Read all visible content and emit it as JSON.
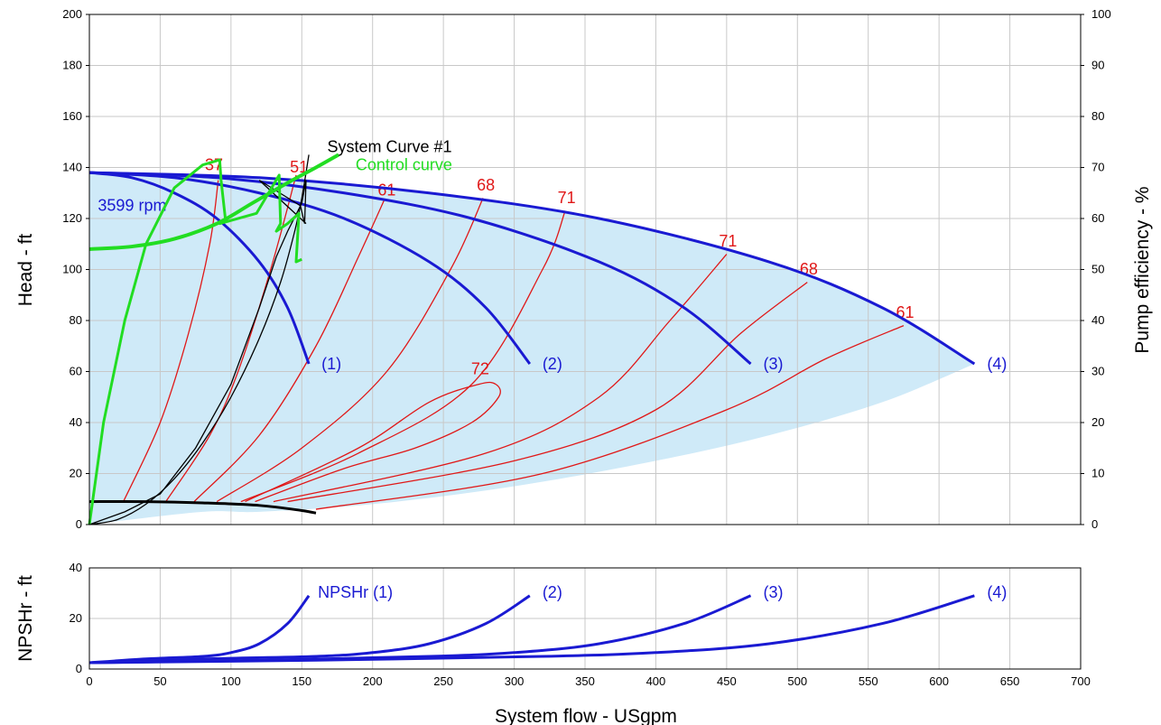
{
  "chart_data": [
    {
      "type": "line",
      "xlabel": "System flow - USgpm",
      "ylabel": "Head - ft",
      "y2label": "Pump efficiency - %",
      "xlim": [
        0,
        700
      ],
      "ylim": [
        0,
        200
      ],
      "y2lim": [
        0,
        100
      ],
      "x_ticks": [
        "0",
        "50",
        "100",
        "150",
        "200",
        "250",
        "300",
        "350",
        "400",
        "450",
        "500",
        "550",
        "600",
        "650",
        "700"
      ],
      "y_ticks": [
        "0",
        "20",
        "40",
        "60",
        "80",
        "100",
        "120",
        "140",
        "160",
        "180",
        "200"
      ],
      "y2_ticks": [
        "0",
        "10",
        "20",
        "30",
        "40",
        "50",
        "60",
        "70",
        "80",
        "90",
        "100"
      ],
      "grid": true,
      "colors": {
        "pump": "#1a1ad2",
        "efficiency": "#e01818",
        "control": "#22dd22",
        "system": "#000000",
        "fill": "#cfeaf8"
      },
      "pump_curves": [
        {
          "label": "(1)",
          "points": [
            [
              0,
              138
            ],
            [
              30,
              136
            ],
            [
              60,
              130
            ],
            [
              90,
              120
            ],
            [
              120,
              103
            ],
            [
              140,
              85
            ],
            [
              155,
              63
            ]
          ]
        },
        {
          "label": "(2)",
          "points": [
            [
              0,
              138
            ],
            [
              60,
              136
            ],
            [
              120,
              130
            ],
            [
              180,
              120
            ],
            [
              240,
              103
            ],
            [
              280,
              85
            ],
            [
              311,
              63
            ]
          ]
        },
        {
          "label": "(3)",
          "points": [
            [
              0,
              138
            ],
            [
              90,
              136
            ],
            [
              180,
              130
            ],
            [
              270,
              120
            ],
            [
              360,
              103
            ],
            [
              420,
              85
            ],
            [
              467,
              63
            ]
          ]
        },
        {
          "label": "(4)",
          "points": [
            [
              0,
              138
            ],
            [
              120,
              136
            ],
            [
              240,
              130
            ],
            [
              360,
              120
            ],
            [
              480,
              103
            ],
            [
              560,
              85
            ],
            [
              625,
              63
            ]
          ]
        }
      ],
      "speed_label": "3599 rpm",
      "efficiency_curves": [
        {
          "label": "37",
          "points": [
            [
              24,
              9
            ],
            [
              50,
              40
            ],
            [
              70,
              75
            ],
            [
              85,
              110
            ],
            [
              91,
              135
            ]
          ]
        },
        {
          "label": "51",
          "points": [
            [
              54,
              9
            ],
            [
              85,
              35
            ],
            [
              105,
              60
            ],
            [
              128,
              100
            ],
            [
              146,
              137
            ]
          ]
        },
        {
          "label": "61",
          "points": [
            [
              74,
              9
            ],
            [
              120,
              35
            ],
            [
              160,
              70
            ],
            [
              190,
              105
            ],
            [
              208,
              127
            ]
          ]
        },
        {
          "label": "68",
          "points": [
            [
              90,
              9
            ],
            [
              150,
              30
            ],
            [
              210,
              60
            ],
            [
              255,
              100
            ],
            [
              278,
              128
            ]
          ]
        },
        {
          "label": "71",
          "points": [
            [
              107,
              9
            ],
            [
              190,
              28
            ],
            [
              270,
              55
            ],
            [
              320,
              100
            ],
            [
              336,
              123
            ]
          ]
        },
        {
          "label": "72",
          "points": [
            [
              110,
              9
            ],
            [
              190,
              30
            ],
            [
              240,
              48
            ],
            [
              275,
              55
            ],
            [
              287,
              55
            ],
            [
              289,
              50
            ],
            [
              270,
              40
            ],
            [
              230,
              30
            ],
            [
              180,
              22
            ],
            [
              117,
              9
            ]
          ]
        },
        {
          "label": "71",
          "points": [
            [
              130,
              9
            ],
            [
              280,
              28
            ],
            [
              360,
              50
            ],
            [
              410,
              80
            ],
            [
              450,
              106
            ]
          ]
        },
        {
          "label": "68",
          "points": [
            [
              140,
              9
            ],
            [
              300,
              25
            ],
            [
              400,
              45
            ],
            [
              460,
              75
            ],
            [
              507,
              95
            ]
          ]
        },
        {
          "label": "61",
          "points": [
            [
              160,
              6
            ],
            [
              320,
              20
            ],
            [
              450,
              45
            ],
            [
              520,
              65
            ],
            [
              575,
              78
            ]
          ]
        }
      ],
      "efficiency_labels": [
        {
          "text": "37",
          "x": 88,
          "y": 139
        },
        {
          "text": "51",
          "x": 148,
          "y": 138
        },
        {
          "text": "61",
          "x": 210,
          "y": 129
        },
        {
          "text": "68",
          "x": 280,
          "y": 131
        },
        {
          "text": "71",
          "x": 337,
          "y": 126
        },
        {
          "text": "72",
          "x": 276,
          "y": 59
        },
        {
          "text": "71",
          "x": 451,
          "y": 109
        },
        {
          "text": "68",
          "x": 508,
          "y": 98
        },
        {
          "text": "61",
          "x": 576,
          "y": 81
        }
      ],
      "control_curve": {
        "label": "Control curve",
        "points": [
          [
            0,
            108
          ],
          [
            30,
            109
          ],
          [
            60,
            112
          ],
          [
            90,
            118
          ],
          [
            115,
            126
          ],
          [
            140,
            134
          ],
          [
            160,
            140
          ],
          [
            176,
            145
          ]
        ]
      },
      "control_curve_2": {
        "label": "",
        "points": [
          [
            0,
            0
          ],
          [
            10,
            40
          ],
          [
            25,
            80
          ],
          [
            40,
            110
          ],
          [
            60,
            132
          ],
          [
            80,
            141
          ],
          [
            92,
            143
          ],
          [
            93,
            135
          ],
          [
            96,
            120
          ],
          [
            92,
            118
          ],
          [
            118,
            122
          ],
          [
            134,
            137
          ],
          [
            135,
            118
          ],
          [
            132,
            115
          ],
          [
            140,
            118
          ],
          [
            148,
            122
          ],
          [
            146,
            103
          ],
          [
            150,
            104
          ]
        ]
      },
      "system_curve": {
        "label": "System Curve #1",
        "points": [
          [
            0,
            0
          ],
          [
            20,
            2
          ],
          [
            40,
            8
          ],
          [
            60,
            18
          ],
          [
            80,
            32
          ],
          [
            100,
            50
          ],
          [
            120,
            73
          ],
          [
            135,
            95
          ],
          [
            145,
            115
          ],
          [
            150,
            128
          ],
          [
            155,
            145
          ]
        ]
      },
      "system_curve_2": {
        "label": "",
        "points": [
          [
            0,
            0
          ],
          [
            25,
            5
          ],
          [
            50,
            12
          ],
          [
            75,
            30
          ],
          [
            100,
            55
          ],
          [
            120,
            85
          ],
          [
            132,
            105
          ],
          [
            140,
            115
          ],
          [
            150,
            126
          ],
          [
            153,
            135
          ],
          [
            152,
            118
          ],
          [
            149,
            125
          ],
          [
            120,
            135
          ],
          [
            153,
            118
          ]
        ]
      },
      "min_curve": {
        "label": "",
        "points": [
          [
            0,
            9
          ],
          [
            40,
            9
          ],
          [
            80,
            8.5
          ],
          [
            120,
            7.5
          ],
          [
            150,
            5.5
          ],
          [
            160,
            4.5
          ]
        ]
      }
    },
    {
      "type": "line",
      "xlabel": "System flow - USgpm",
      "ylabel": "NPSHr - ft",
      "xlim": [
        0,
        700
      ],
      "ylim": [
        0,
        40
      ],
      "y_ticks": [
        "0",
        "20",
        "40"
      ],
      "grid": true,
      "series": [
        {
          "name": "NPSHr (1)",
          "points": [
            [
              0,
              2.5
            ],
            [
              40,
              4
            ],
            [
              80,
              5
            ],
            [
              100,
              6.5
            ],
            [
              120,
              10
            ],
            [
              140,
              18
            ],
            [
              155,
              29
            ]
          ]
        },
        {
          "name": "(2)",
          "points": [
            [
              0,
              2.5
            ],
            [
              80,
              4
            ],
            [
              160,
              5
            ],
            [
              200,
              6.5
            ],
            [
              240,
              10
            ],
            [
              280,
              18
            ],
            [
              311,
              29
            ]
          ]
        },
        {
          "name": "(3)",
          "points": [
            [
              0,
              2.5
            ],
            [
              120,
              3.5
            ],
            [
              240,
              5
            ],
            [
              300,
              6.5
            ],
            [
              360,
              10
            ],
            [
              420,
              18
            ],
            [
              467,
              29
            ]
          ]
        },
        {
          "name": "(4)",
          "points": [
            [
              0,
              2.5
            ],
            [
              160,
              3.5
            ],
            [
              320,
              5
            ],
            [
              400,
              6.5
            ],
            [
              480,
              10
            ],
            [
              560,
              18
            ],
            [
              625,
              29
            ]
          ]
        }
      ]
    }
  ]
}
